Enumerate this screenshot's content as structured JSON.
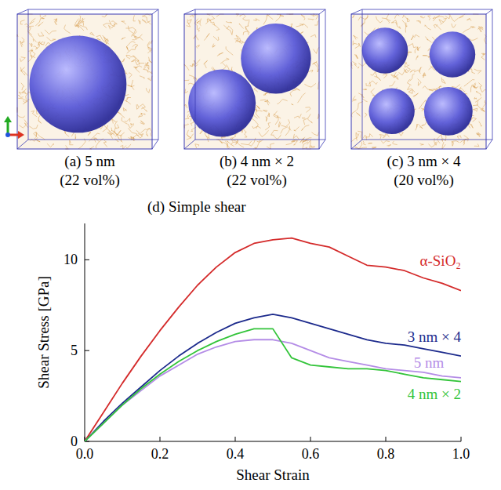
{
  "panels": [
    {
      "caption": "(a) 5 nm",
      "fraction": "(22 vol%)"
    },
    {
      "caption": "(b) 4 nm × 2",
      "fraction": "(22 vol%)"
    },
    {
      "caption": "(c) 3 nm × 4",
      "fraction": "(20 vol%)"
    }
  ],
  "chart_data": {
    "type": "line",
    "title": "(d) Simple shear",
    "x_label": "Shear Strain",
    "y_label": "Shear Stress [GPa]",
    "x": [
      0,
      0.05,
      0.1,
      0.15,
      0.2,
      0.25,
      0.3,
      0.35,
      0.4,
      0.45,
      0.5,
      0.55,
      0.6,
      0.65,
      0.7,
      0.75,
      0.8,
      0.85,
      0.9,
      0.95,
      1.0
    ],
    "series": [
      {
        "name": "α-SiO₂",
        "color": "#d42a2a",
        "values": [
          0,
          1.6,
          3.2,
          4.7,
          6.1,
          7.4,
          8.6,
          9.6,
          10.4,
          10.9,
          11.1,
          11.2,
          10.9,
          10.7,
          10.2,
          9.7,
          9.6,
          9.4,
          9.0,
          8.7,
          8.3
        ]
      },
      {
        "name": "3 nm × 4",
        "color": "#1c2a8c",
        "values": [
          0,
          1.1,
          2.1,
          3.0,
          3.9,
          4.7,
          5.4,
          6.0,
          6.5,
          6.8,
          7.0,
          6.8,
          6.5,
          6.2,
          5.9,
          5.6,
          5.4,
          5.3,
          5.1,
          4.9,
          4.7
        ]
      },
      {
        "name": "5 nm",
        "color": "#b48ce6",
        "values": [
          0,
          1.0,
          2.0,
          2.8,
          3.6,
          4.2,
          4.8,
          5.2,
          5.5,
          5.6,
          5.6,
          5.4,
          5.0,
          4.6,
          4.4,
          4.2,
          4.0,
          3.9,
          3.8,
          3.6,
          3.5
        ]
      },
      {
        "name": "4 nm × 2",
        "color": "#33c43a",
        "values": [
          0,
          1.0,
          2.0,
          2.9,
          3.7,
          4.4,
          5.0,
          5.5,
          5.9,
          6.2,
          6.2,
          4.6,
          4.2,
          4.1,
          4.0,
          4.0,
          3.9,
          3.7,
          3.5,
          3.4,
          3.3
        ]
      }
    ],
    "xlim": [
      0,
      1.0
    ],
    "xticks": [
      {
        "value": 0,
        "label": "0.0"
      },
      {
        "value": 0.2,
        "label": "0.2"
      },
      {
        "value": 0.4,
        "label": "0.4"
      },
      {
        "value": 0.6,
        "label": "0.6"
      },
      {
        "value": 0.8,
        "label": "0.8"
      },
      {
        "value": 1.0,
        "label": "1.0"
      }
    ],
    "ylim": [
      0,
      12
    ],
    "yticks": [
      0,
      5,
      10
    ],
    "grid": false,
    "legend": "right"
  }
}
